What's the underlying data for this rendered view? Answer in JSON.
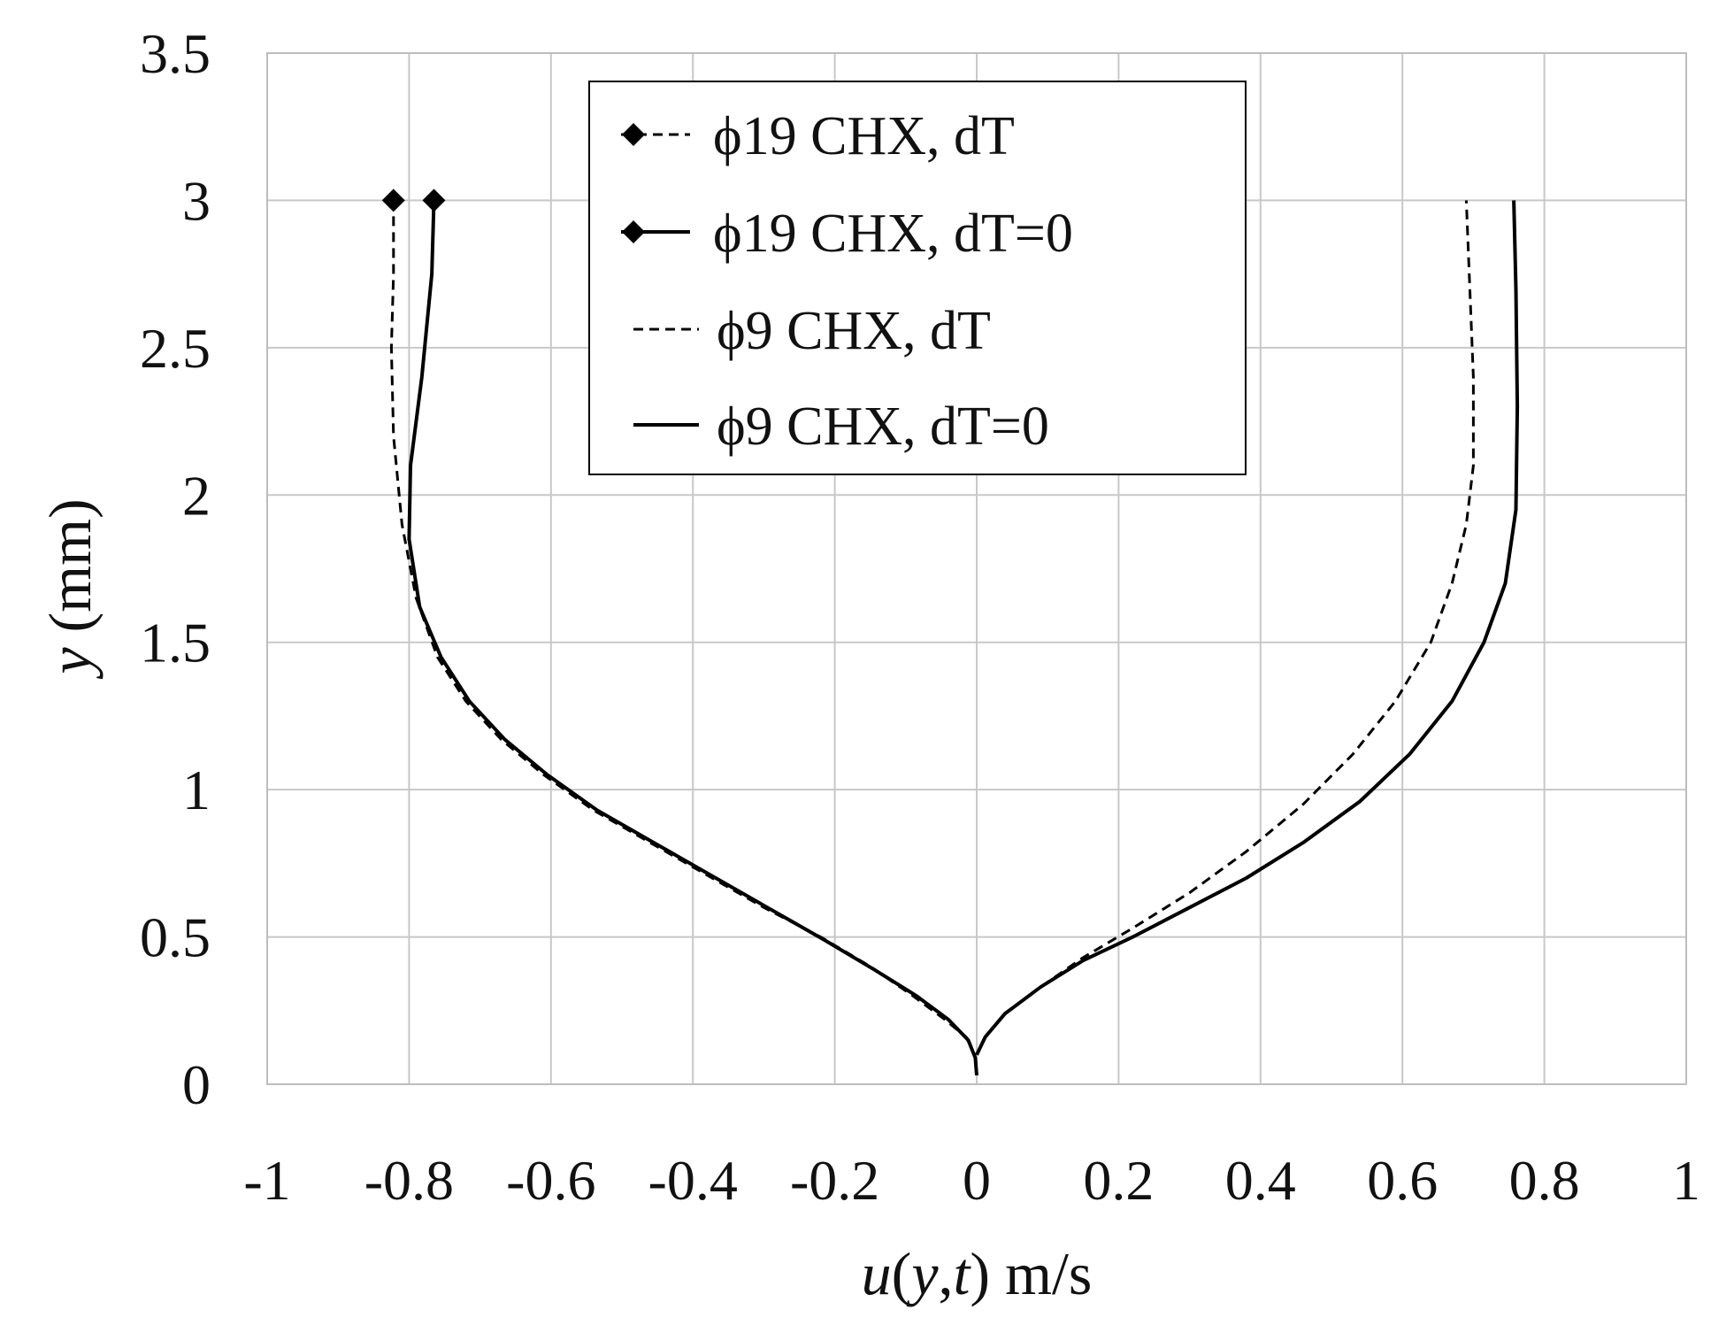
{
  "chart_data": {
    "type": "line",
    "title": "",
    "xlabel": "u(y,t) m/s",
    "xlabel_parts": [
      {
        "text": "u",
        "italic": true
      },
      {
        "text": "(",
        "italic": false
      },
      {
        "text": "y",
        "italic": true
      },
      {
        "text": ",",
        "italic": false
      },
      {
        "text": "t",
        "italic": true
      },
      {
        "text": ") m/s",
        "italic": false
      }
    ],
    "ylabel": "y (mm)",
    "ylabel_parts": [
      {
        "text": "y",
        "italic": true
      },
      {
        "text": " (mm)",
        "italic": false
      }
    ],
    "xlim": [
      -1,
      1
    ],
    "ylim": [
      0,
      3.5
    ],
    "xticks": [
      -1,
      -0.8,
      -0.6,
      -0.4,
      -0.2,
      0,
      0.2,
      0.4,
      0.6,
      0.8,
      1
    ],
    "xtick_labels": [
      "-1",
      "-0.8",
      "-0.6",
      "-0.4",
      "-0.2",
      "0",
      "0.2",
      "0.4",
      "0.6",
      "0.8",
      "1"
    ],
    "yticks": [
      0,
      0.5,
      1,
      1.5,
      2,
      2.5,
      3,
      3.5
    ],
    "ytick_labels": [
      "0",
      "0.5",
      "1",
      "1.5",
      "2",
      "2.5",
      "3",
      "3.5"
    ],
    "grid": true,
    "legend_position": "top-center",
    "series": [
      {
        "name": "ϕ19   CHX, dT",
        "style": "dashed",
        "marker": "diamond",
        "color": "#000000",
        "x": [
          -0.822,
          -0.822,
          -0.825,
          -0.822,
          -0.81,
          -0.79,
          -0.76,
          -0.72,
          -0.67,
          -0.61,
          -0.54,
          -0.46,
          -0.38,
          -0.3,
          -0.22,
          -0.15,
          -0.09,
          -0.045,
          -0.015,
          -0.003,
          0.0
        ],
        "y": [
          3.0,
          2.75,
          2.5,
          2.2,
          1.9,
          1.65,
          1.45,
          1.3,
          1.17,
          1.05,
          0.93,
          0.82,
          0.71,
          0.6,
          0.5,
          0.4,
          0.3,
          0.22,
          0.16,
          0.1,
          0.03
        ],
        "markers_y": [
          3.0
        ]
      },
      {
        "name": "ϕ19   CHX, dT=0",
        "style": "solid",
        "marker": "diamond",
        "color": "#000000",
        "x": [
          -0.765,
          -0.768,
          -0.782,
          -0.798,
          -0.8,
          -0.785,
          -0.755,
          -0.715,
          -0.665,
          -0.605,
          -0.535,
          -0.455,
          -0.375,
          -0.295,
          -0.215,
          -0.145,
          -0.085,
          -0.04,
          -0.012,
          -0.002,
          0.0
        ],
        "y": [
          3.0,
          2.75,
          2.4,
          2.1,
          1.85,
          1.62,
          1.45,
          1.3,
          1.17,
          1.05,
          0.93,
          0.82,
          0.71,
          0.6,
          0.49,
          0.39,
          0.3,
          0.22,
          0.15,
          0.09,
          0.03
        ],
        "markers_y": [
          3.0
        ]
      },
      {
        "name": "ϕ9   CHX, dT",
        "style": "dashed",
        "marker": "none",
        "color": "#000000",
        "x": [
          0.0,
          0.012,
          0.04,
          0.09,
          0.15,
          0.22,
          0.3,
          0.38,
          0.46,
          0.53,
          0.59,
          0.64,
          0.67,
          0.69,
          0.7,
          0.7,
          0.695,
          0.69
        ],
        "y": [
          0.1,
          0.16,
          0.24,
          0.33,
          0.43,
          0.53,
          0.65,
          0.79,
          0.95,
          1.12,
          1.3,
          1.5,
          1.7,
          1.9,
          2.1,
          2.4,
          2.7,
          3.0
        ]
      },
      {
        "name": "ϕ9   CHX, dT=0",
        "style": "solid",
        "marker": "none",
        "color": "#000000",
        "x": [
          0.0,
          0.012,
          0.04,
          0.09,
          0.15,
          0.22,
          0.3,
          0.38,
          0.46,
          0.54,
          0.61,
          0.67,
          0.715,
          0.745,
          0.76,
          0.762,
          0.76,
          0.757
        ],
        "y": [
          0.1,
          0.16,
          0.24,
          0.33,
          0.42,
          0.5,
          0.6,
          0.7,
          0.82,
          0.96,
          1.12,
          1.3,
          1.5,
          1.7,
          1.95,
          2.3,
          2.7,
          3.0
        ]
      }
    ]
  }
}
